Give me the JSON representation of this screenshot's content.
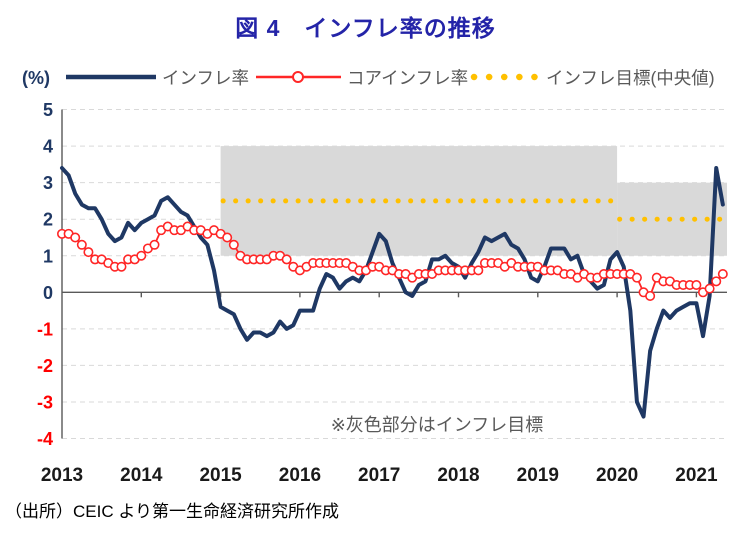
{
  "title": "図 4　インフレ率の推移",
  "source": "（出所）CEIC より第一生命経済研究所作成",
  "legend": {
    "unit_label": "(%)",
    "items": [
      {
        "label": "インフレ率",
        "color": "#1f3864",
        "style": "solid-line"
      },
      {
        "label": "コアインフレ率",
        "color": "#ff2626",
        "style": "line-open-circle"
      },
      {
        "label": "インフレ目標(中央値)",
        "color": "#ffc000",
        "style": "dotted"
      }
    ]
  },
  "colors": {
    "title": "#2424a8",
    "axis": "#595959",
    "grid": "#d9d9d9",
    "band": "#d9d9d9",
    "negative_tick_label": "#ff0000",
    "positive_tick_label": "#1f3864"
  },
  "chart_data": {
    "type": "line",
    "title": "図 4　インフレ率の推移",
    "x_start": "2013-01",
    "frequency": "monthly",
    "x_tick_labels": [
      "2013",
      "2014",
      "2015",
      "2016",
      "2017",
      "2018",
      "2019",
      "2020",
      "2021"
    ],
    "y_tick_labels": [
      "5",
      "4",
      "3",
      "2",
      "1",
      "0",
      "-1",
      "-2",
      "-3",
      "-4"
    ],
    "ylim": [
      -4,
      5
    ],
    "y_unit": "(%)",
    "grid": "dashed-horizontal",
    "legend_position": "top",
    "annotation": "※灰色部分はインフレ目標",
    "series": [
      {
        "name": "インフレ率",
        "type": "line",
        "color": "#1f3864",
        "values": [
          3.4,
          3.2,
          2.7,
          2.4,
          2.3,
          2.3,
          2.0,
          1.6,
          1.4,
          1.5,
          1.9,
          1.7,
          1.9,
          2.0,
          2.1,
          2.5,
          2.6,
          2.4,
          2.2,
          2.1,
          1.8,
          1.5,
          1.3,
          0.6,
          -0.4,
          -0.5,
          -0.6,
          -1.0,
          -1.3,
          -1.1,
          -1.1,
          -1.2,
          -1.1,
          -0.8,
          -1.0,
          -0.9,
          -0.5,
          -0.5,
          -0.5,
          0.1,
          0.5,
          0.4,
          0.1,
          0.3,
          0.4,
          0.3,
          0.6,
          1.1,
          1.6,
          1.4,
          0.8,
          0.4,
          0.0,
          -0.1,
          0.2,
          0.3,
          0.9,
          0.9,
          1.0,
          0.8,
          0.7,
          0.4,
          0.8,
          1.1,
          1.5,
          1.4,
          1.5,
          1.6,
          1.3,
          1.2,
          0.9,
          0.4,
          0.3,
          0.7,
          1.2,
          1.2,
          1.2,
          0.9,
          1.0,
          0.5,
          0.3,
          0.1,
          0.2,
          0.9,
          1.1,
          0.7,
          -0.5,
          -3.0,
          -3.4,
          -1.6,
          -1.0,
          -0.5,
          -0.7,
          -0.5,
          -0.4,
          -0.3,
          -0.3,
          -1.2,
          -0.1,
          3.4,
          2.4
        ]
      },
      {
        "name": "コアインフレ率",
        "type": "line",
        "marker": "open-circle",
        "color": "#ff2626",
        "values": [
          1.6,
          1.6,
          1.5,
          1.3,
          1.1,
          0.9,
          0.9,
          0.8,
          0.7,
          0.7,
          0.9,
          0.9,
          1.0,
          1.2,
          1.3,
          1.7,
          1.8,
          1.7,
          1.7,
          1.8,
          1.7,
          1.7,
          1.6,
          1.7,
          1.6,
          1.5,
          1.3,
          1.0,
          0.9,
          0.9,
          0.9,
          0.9,
          1.0,
          1.0,
          0.9,
          0.7,
          0.6,
          0.7,
          0.8,
          0.8,
          0.8,
          0.8,
          0.8,
          0.8,
          0.7,
          0.6,
          0.6,
          0.7,
          0.7,
          0.6,
          0.6,
          0.5,
          0.5,
          0.4,
          0.5,
          0.5,
          0.5,
          0.6,
          0.6,
          0.6,
          0.6,
          0.6,
          0.6,
          0.6,
          0.8,
          0.8,
          0.8,
          0.7,
          0.8,
          0.7,
          0.7,
          0.7,
          0.7,
          0.6,
          0.6,
          0.6,
          0.5,
          0.5,
          0.4,
          0.5,
          0.4,
          0.4,
          0.5,
          0.5,
          0.5,
          0.5,
          0.5,
          0.4,
          0.0,
          -0.1,
          0.4,
          0.3,
          0.3,
          0.2,
          0.2,
          0.2,
          0.2,
          0.0,
          0.1,
          0.3,
          0.5
        ]
      },
      {
        "name": "インフレ目標(中央値)",
        "type": "dotted-step",
        "color": "#ffc000",
        "segments": [
          {
            "from": "2015-01",
            "to": "2019-12",
            "value": 2.5
          },
          {
            "from": "2020-01",
            "to": "2021-05",
            "value": 2.0
          }
        ]
      }
    ],
    "target_band": {
      "color": "#d9d9d9",
      "ranges": [
        {
          "from": "2015-01",
          "to": "2019-12",
          "low": 1,
          "high": 4
        },
        {
          "from": "2020-01",
          "to": "2021-05",
          "low": 1,
          "high": 3
        }
      ]
    }
  }
}
